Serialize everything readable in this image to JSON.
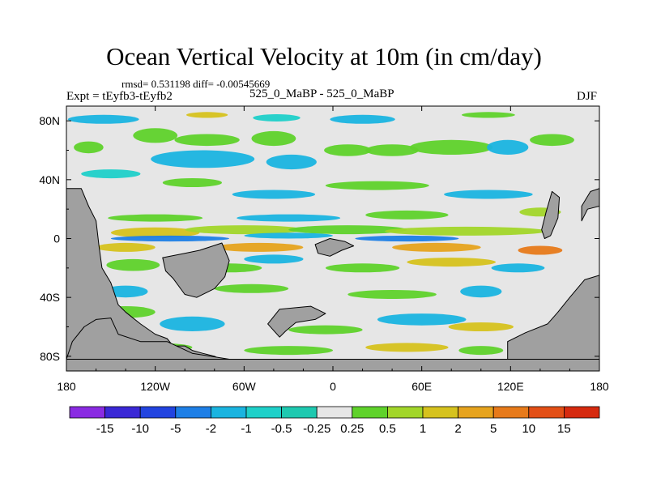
{
  "chart_data": {
    "type": "heatmap",
    "title": "Ocean Vertical Velocity at 10m (in cm/day)",
    "stats_line": "rmsd= 0.531198 diff= -0.00545669",
    "left_label": "Expt = tEyfb3-tEyfb2",
    "center_label": "525_0_MaBP - 525_0_MaBP",
    "right_label": "DJF",
    "x_ticks": [
      {
        "value": -180,
        "label": "180"
      },
      {
        "value": -120,
        "label": "120W"
      },
      {
        "value": -60,
        "label": "60W"
      },
      {
        "value": 0,
        "label": "0"
      },
      {
        "value": 60,
        "label": "60E"
      },
      {
        "value": 120,
        "label": "120E"
      },
      {
        "value": 180,
        "label": "180"
      }
    ],
    "y_ticks": [
      {
        "value": 80,
        "label": "80N"
      },
      {
        "value": 40,
        "label": "40N"
      },
      {
        "value": 0,
        "label": "0"
      },
      {
        "value": -40,
        "label": "40S"
      },
      {
        "value": -80,
        "label": "80S"
      }
    ],
    "xlim": [
      -180,
      180
    ],
    "ylim": [
      -90,
      90
    ],
    "colorbar": {
      "colors": [
        "#8a2be2",
        "#3a28d6",
        "#2244e0",
        "#1e7fe6",
        "#1ab4e0",
        "#1fd0c9",
        "#1ec9b0",
        "#e6e6e6",
        "#5fd22b",
        "#a2d62a",
        "#d6c21e",
        "#e6a31e",
        "#e77a1a",
        "#e34f16",
        "#d62a0f"
      ],
      "labels": [
        "-15",
        "-10",
        "-5",
        "-2",
        "-1",
        "-0.5",
        "-0.25",
        "0.25",
        "0.5",
        "1",
        "2",
        "5",
        "10",
        "15"
      ]
    },
    "land_color": "#a0a0a0",
    "ocean_background": "#e6e6e6",
    "land_regions": [
      {
        "name": "west-continent",
        "lonlat": [
          [
            -180,
            34
          ],
          [
            -170,
            34
          ],
          [
            -165,
            22
          ],
          [
            -160,
            12
          ],
          [
            -158,
            -5
          ],
          [
            -156,
            -20
          ],
          [
            -150,
            -30
          ],
          [
            -145,
            -45
          ],
          [
            -140,
            -50
          ],
          [
            -130,
            -58
          ],
          [
            -120,
            -65
          ],
          [
            -112,
            -68
          ],
          [
            -108,
            -73
          ],
          [
            -100,
            -73
          ],
          [
            -95,
            -76
          ],
          [
            -88,
            -78
          ],
          [
            -80,
            -80
          ],
          [
            -76,
            -82
          ],
          [
            -180,
            -82
          ]
        ]
      },
      {
        "name": "southern-strip",
        "lonlat": [
          [
            -180,
            -82
          ],
          [
            180,
            -82
          ],
          [
            180,
            -90
          ],
          [
            -180,
            -90
          ]
        ]
      },
      {
        "name": "south-america-like",
        "lonlat": [
          [
            -115,
            -13
          ],
          [
            -100,
            -10
          ],
          [
            -90,
            -8
          ],
          [
            -75,
            -3
          ],
          [
            -70,
            -15
          ],
          [
            -73,
            -26
          ],
          [
            -80,
            -34
          ],
          [
            -92,
            -40
          ],
          [
            -100,
            -38
          ],
          [
            -108,
            -27
          ],
          [
            -113,
            -22
          ]
        ]
      },
      {
        "name": "antarctic-plateau",
        "lonlat": [
          [
            -180,
            -82
          ],
          [
            -176,
            -70
          ],
          [
            -168,
            -60
          ],
          [
            -160,
            -55
          ],
          [
            -150,
            -54
          ],
          [
            -145,
            -65
          ],
          [
            -130,
            -70
          ],
          [
            -112,
            -70
          ],
          [
            -95,
            -78
          ],
          [
            -70,
            -82
          ]
        ]
      },
      {
        "name": "mid-south-island",
        "lonlat": [
          [
            -44,
            -58
          ],
          [
            -36,
            -48
          ],
          [
            -15,
            -46
          ],
          [
            -5,
            -51
          ],
          [
            -12,
            -55
          ],
          [
            -25,
            -57
          ],
          [
            -32,
            -63
          ],
          [
            -36,
            -67
          ]
        ]
      },
      {
        "name": "equatorial-island",
        "lonlat": [
          [
            -12,
            -4
          ],
          [
            -2,
            0
          ],
          [
            8,
            -2
          ],
          [
            14,
            -5
          ],
          [
            6,
            -8
          ],
          [
            -2,
            -12
          ],
          [
            -10,
            -10
          ]
        ]
      },
      {
        "name": "east-continent-south",
        "lonlat": [
          [
            118,
            -70
          ],
          [
            130,
            -64
          ],
          [
            145,
            -58
          ],
          [
            152,
            -50
          ],
          [
            160,
            -40
          ],
          [
            170,
            -28
          ],
          [
            180,
            -25
          ],
          [
            180,
            -82
          ],
          [
            118,
            -82
          ]
        ]
      },
      {
        "name": "east-continent-north",
        "lonlat": [
          [
            168,
            12
          ],
          [
            172,
            20
          ],
          [
            180,
            22
          ],
          [
            180,
            34
          ],
          [
            174,
            32
          ],
          [
            168,
            22
          ]
        ]
      },
      {
        "name": "east-peninsula",
        "lonlat": [
          [
            148,
            32
          ],
          [
            153,
            28
          ],
          [
            152,
            14
          ],
          [
            147,
            2
          ],
          [
            143,
            0
          ],
          [
            141,
            6
          ],
          [
            144,
            18
          ]
        ]
      }
    ],
    "field_patches": [
      {
        "lon": -155,
        "lat": 81,
        "rx": 24,
        "ry": 3,
        "level": 4
      },
      {
        "lon": -85,
        "lat": 84,
        "rx": 14,
        "ry": 2,
        "level": 10
      },
      {
        "lon": -38,
        "lat": 82,
        "rx": 16,
        "ry": 2.5,
        "level": 5
      },
      {
        "lon": 20,
        "lat": 81,
        "rx": 22,
        "ry": 3,
        "level": 4
      },
      {
        "lon": 105,
        "lat": 84,
        "rx": 18,
        "ry": 2,
        "level": 8
      },
      {
        "lon": -165,
        "lat": 62,
        "rx": 10,
        "ry": 4,
        "level": 8
      },
      {
        "lon": -120,
        "lat": 70,
        "rx": 15,
        "ry": 5,
        "level": 8
      },
      {
        "lon": -85,
        "lat": 67,
        "rx": 22,
        "ry": 4,
        "level": 8
      },
      {
        "lon": -40,
        "lat": 68,
        "rx": 15,
        "ry": 5,
        "level": 8
      },
      {
        "lon": -88,
        "lat": 54,
        "rx": 35,
        "ry": 6,
        "level": 4
      },
      {
        "lon": -28,
        "lat": 52,
        "rx": 17,
        "ry": 5,
        "level": 4
      },
      {
        "lon": 10,
        "lat": 60,
        "rx": 16,
        "ry": 4,
        "level": 8
      },
      {
        "lon": 40,
        "lat": 60,
        "rx": 18,
        "ry": 4,
        "level": 8
      },
      {
        "lon": 80,
        "lat": 62,
        "rx": 28,
        "ry": 5,
        "level": 8
      },
      {
        "lon": 118,
        "lat": 62,
        "rx": 14,
        "ry": 5,
        "level": 4
      },
      {
        "lon": 148,
        "lat": 67,
        "rx": 15,
        "ry": 4,
        "level": 8
      },
      {
        "lon": -150,
        "lat": 44,
        "rx": 20,
        "ry": 3,
        "level": 5
      },
      {
        "lon": -95,
        "lat": 38,
        "rx": 20,
        "ry": 3,
        "level": 8
      },
      {
        "lon": -40,
        "lat": 30,
        "rx": 28,
        "ry": 3,
        "level": 4
      },
      {
        "lon": 30,
        "lat": 36,
        "rx": 35,
        "ry": 3,
        "level": 8
      },
      {
        "lon": 105,
        "lat": 30,
        "rx": 30,
        "ry": 3,
        "level": 4
      },
      {
        "lon": -120,
        "lat": 14,
        "rx": 32,
        "ry": 2.5,
        "level": 8
      },
      {
        "lon": -30,
        "lat": 14,
        "rx": 35,
        "ry": 2.5,
        "level": 4
      },
      {
        "lon": 50,
        "lat": 16,
        "rx": 28,
        "ry": 3,
        "level": 8
      },
      {
        "lon": 140,
        "lat": 18,
        "rx": 14,
        "ry": 3,
        "level": 9
      },
      {
        "lon": -120,
        "lat": 4,
        "rx": 30,
        "ry": 3.5,
        "level": 10
      },
      {
        "lon": -60,
        "lat": 6,
        "rx": 40,
        "ry": 3,
        "level": 9
      },
      {
        "lon": 10,
        "lat": 6,
        "rx": 40,
        "ry": 3,
        "level": 8
      },
      {
        "lon": 90,
        "lat": 5,
        "rx": 55,
        "ry": 3,
        "level": 9
      },
      {
        "lon": -110,
        "lat": 0,
        "rx": 40,
        "ry": 2,
        "level": 3
      },
      {
        "lon": -30,
        "lat": 2,
        "rx": 30,
        "ry": 2,
        "level": 4
      },
      {
        "lon": 50,
        "lat": 0,
        "rx": 35,
        "ry": 2,
        "level": 3
      },
      {
        "lon": -140,
        "lat": -6,
        "rx": 20,
        "ry": 3,
        "level": 10
      },
      {
        "lon": -50,
        "lat": -6,
        "rx": 30,
        "ry": 3,
        "level": 11
      },
      {
        "lon": 70,
        "lat": -6,
        "rx": 30,
        "ry": 3,
        "level": 11
      },
      {
        "lon": 140,
        "lat": -8,
        "rx": 15,
        "ry": 3,
        "level": 12
      },
      {
        "lon": -135,
        "lat": -18,
        "rx": 18,
        "ry": 4,
        "level": 8
      },
      {
        "lon": -70,
        "lat": -20,
        "rx": 22,
        "ry": 3,
        "level": 8
      },
      {
        "lon": -40,
        "lat": -14,
        "rx": 20,
        "ry": 3,
        "level": 4
      },
      {
        "lon": 20,
        "lat": -20,
        "rx": 25,
        "ry": 3,
        "level": 8
      },
      {
        "lon": 80,
        "lat": -16,
        "rx": 30,
        "ry": 3,
        "level": 10
      },
      {
        "lon": 125,
        "lat": -20,
        "rx": 18,
        "ry": 3,
        "level": 4
      },
      {
        "lon": -140,
        "lat": -36,
        "rx": 15,
        "ry": 4,
        "level": 4
      },
      {
        "lon": -55,
        "lat": -34,
        "rx": 25,
        "ry": 3,
        "level": 8
      },
      {
        "lon": 40,
        "lat": -38,
        "rx": 30,
        "ry": 3,
        "level": 8
      },
      {
        "lon": 100,
        "lat": -36,
        "rx": 14,
        "ry": 4,
        "level": 4
      },
      {
        "lon": -140,
        "lat": -50,
        "rx": 20,
        "ry": 4,
        "level": 8
      },
      {
        "lon": -95,
        "lat": -58,
        "rx": 22,
        "ry": 5,
        "level": 4
      },
      {
        "lon": -5,
        "lat": -62,
        "rx": 25,
        "ry": 3,
        "level": 8
      },
      {
        "lon": 60,
        "lat": -55,
        "rx": 30,
        "ry": 4,
        "level": 4
      },
      {
        "lon": 100,
        "lat": -60,
        "rx": 22,
        "ry": 3,
        "level": 10
      },
      {
        "lon": -120,
        "lat": -74,
        "rx": 25,
        "ry": 3,
        "level": 8
      },
      {
        "lon": -30,
        "lat": -76,
        "rx": 30,
        "ry": 3,
        "level": 8
      },
      {
        "lon": 50,
        "lat": -74,
        "rx": 28,
        "ry": 3,
        "level": 10
      },
      {
        "lon": 100,
        "lat": -76,
        "rx": 15,
        "ry": 3,
        "level": 8
      }
    ]
  }
}
